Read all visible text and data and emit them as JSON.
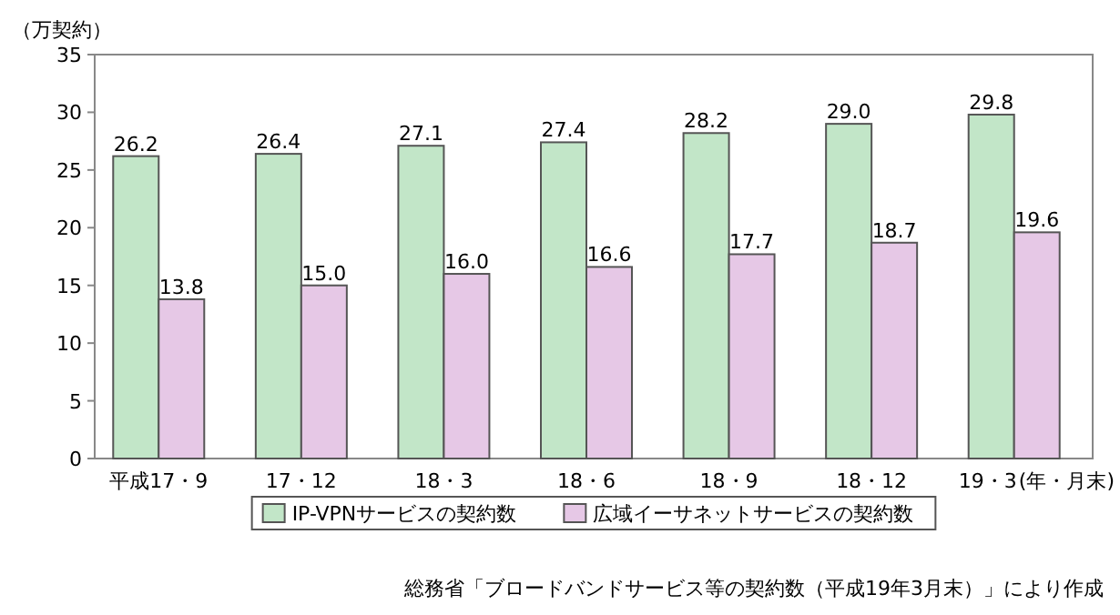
{
  "chart_data": {
    "type": "bar",
    "ylabel": "（万契約）",
    "xlabel": "(年・月末)",
    "categories": [
      "平成17・9",
      "17・12",
      "18・3",
      "18・6",
      "18・9",
      "18・12",
      "19・3"
    ],
    "series": [
      {
        "name": "IP-VPNサービスの契約数",
        "color": "#c2e6c8",
        "values": [
          26.2,
          26.4,
          27.1,
          27.4,
          28.2,
          29.0,
          29.8
        ]
      },
      {
        "name": "広域イーサネットサービスの契約数",
        "color": "#e6c8e6",
        "values": [
          13.8,
          15.0,
          16.0,
          16.6,
          17.7,
          18.7,
          19.6
        ]
      }
    ],
    "value_labels": [
      [
        "26.2",
        "26.4",
        "27.1",
        "27.4",
        "28.2",
        "29.0",
        "29.8"
      ],
      [
        "13.8",
        "15.0",
        "16.0",
        "16.6",
        "17.7",
        "18.7",
        "19.6"
      ]
    ],
    "ylim": [
      0,
      35
    ],
    "yticks": [
      0,
      5,
      10,
      15,
      20,
      25,
      30,
      35
    ],
    "legend": "bottom",
    "annotations": [
      "総務省「ブロードバンドサービス等の契約数（平成19年3月末）」により作成"
    ]
  }
}
